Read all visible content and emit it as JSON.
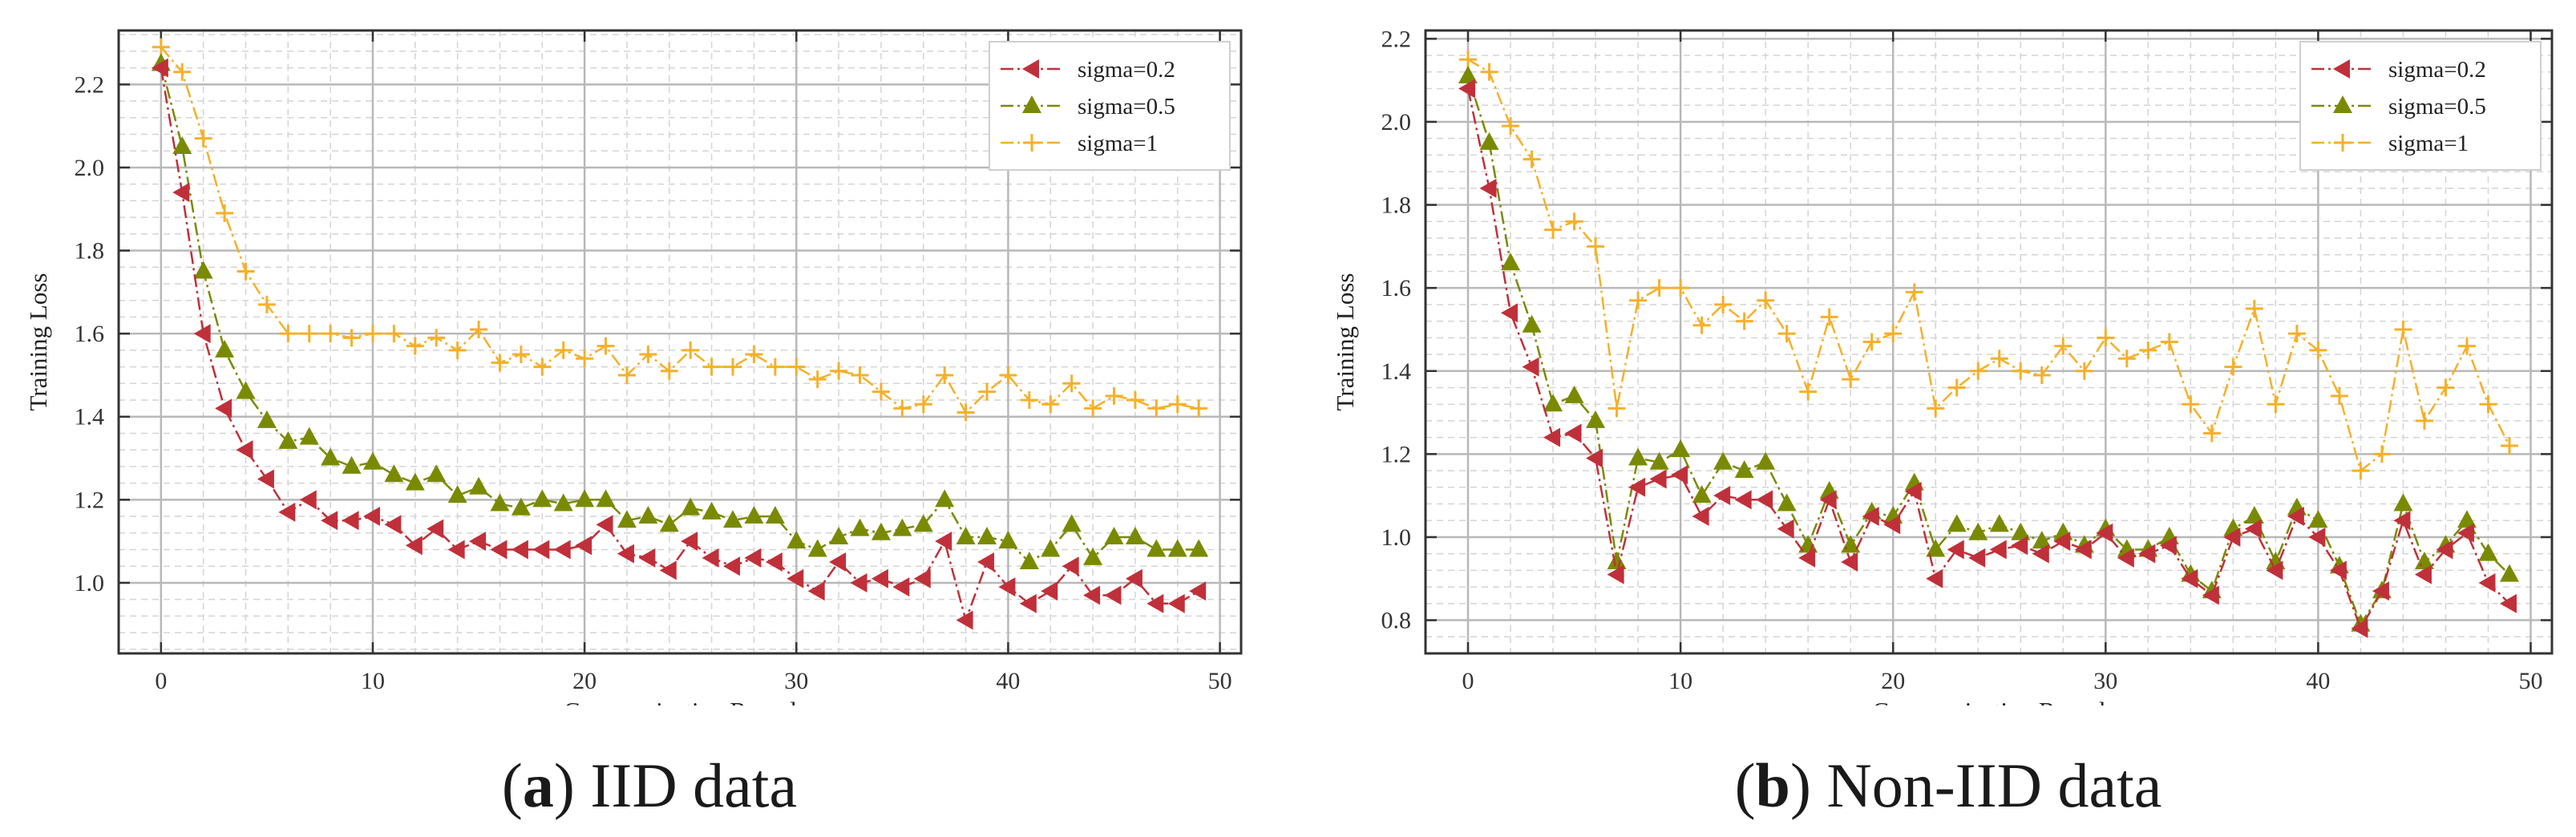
{
  "figure": {
    "panels": [
      {
        "caption_letter": "a",
        "caption_text": " IID data",
        "chart_data": {
          "type": "line",
          "title": "",
          "xlabel": "Communication Round",
          "ylabel": "Training Loss",
          "xlim": [
            -2,
            51
          ],
          "ylim": [
            0.83,
            2.33
          ],
          "xticks": [
            0,
            10,
            20,
            30,
            40,
            50
          ],
          "yticks": [
            1.0,
            1.2,
            1.4,
            1.6,
            1.8,
            2.0,
            2.2
          ],
          "ytick_labels": [
            "1.0",
            "1.2",
            "1.4",
            "1.6",
            "1.8",
            "2.0",
            "2.2"
          ],
          "grid": true,
          "legend_position": "top-right",
          "x": [
            0,
            1,
            2,
            3,
            4,
            5,
            6,
            7,
            8,
            9,
            10,
            11,
            12,
            13,
            14,
            15,
            16,
            17,
            18,
            19,
            20,
            21,
            22,
            23,
            24,
            25,
            26,
            27,
            28,
            29,
            30,
            31,
            32,
            33,
            34,
            35,
            36,
            37,
            38,
            39,
            40,
            41,
            42,
            43,
            44,
            45,
            46,
            47,
            48,
            49
          ],
          "series": [
            {
              "name": "sigma=0.2",
              "color": "#c0303a",
              "marker": "triangle-left",
              "values": [
                2.24,
                1.94,
                1.6,
                1.42,
                1.32,
                1.25,
                1.17,
                1.2,
                1.15,
                1.15,
                1.16,
                1.14,
                1.09,
                1.13,
                1.08,
                1.1,
                1.08,
                1.08,
                1.08,
                1.08,
                1.09,
                1.14,
                1.07,
                1.06,
                1.03,
                1.1,
                1.06,
                1.04,
                1.06,
                1.05,
                1.01,
                0.98,
                1.05,
                1.0,
                1.01,
                0.99,
                1.01,
                1.1,
                0.91,
                1.05,
                0.99,
                0.95,
                0.98,
                1.04,
                0.97,
                0.97,
                1.01,
                0.95,
                0.95,
                0.98
              ]
            },
            {
              "name": "sigma=0.5",
              "color": "#7a8a00",
              "marker": "triangle-up",
              "values": [
                2.25,
                2.05,
                1.75,
                1.56,
                1.46,
                1.39,
                1.34,
                1.35,
                1.3,
                1.28,
                1.29,
                1.26,
                1.24,
                1.26,
                1.21,
                1.23,
                1.19,
                1.18,
                1.2,
                1.19,
                1.2,
                1.2,
                1.15,
                1.16,
                1.14,
                1.18,
                1.17,
                1.15,
                1.16,
                1.16,
                1.1,
                1.08,
                1.11,
                1.13,
                1.12,
                1.13,
                1.14,
                1.2,
                1.11,
                1.11,
                1.1,
                1.05,
                1.08,
                1.14,
                1.06,
                1.11,
                1.11,
                1.08,
                1.08,
                1.08
              ]
            },
            {
              "name": "sigma=1",
              "color": "#f5b02a",
              "marker": "plus",
              "values": [
                2.29,
                2.23,
                2.07,
                1.89,
                1.75,
                1.67,
                1.6,
                1.6,
                1.6,
                1.59,
                1.6,
                1.6,
                1.57,
                1.59,
                1.56,
                1.61,
                1.53,
                1.55,
                1.52,
                1.56,
                1.54,
                1.57,
                1.5,
                1.55,
                1.51,
                1.56,
                1.52,
                1.52,
                1.55,
                1.52,
                1.52,
                1.49,
                1.51,
                1.5,
                1.46,
                1.42,
                1.43,
                1.5,
                1.41,
                1.46,
                1.5,
                1.44,
                1.43,
                1.48,
                1.42,
                1.45,
                1.44,
                1.42,
                1.43,
                1.42
              ]
            }
          ]
        }
      },
      {
        "caption_letter": "b",
        "caption_text": " Non-IID data",
        "chart_data": {
          "type": "line",
          "title": "",
          "xlabel": "Communication Round",
          "ylabel": "Training Loss",
          "xlim": [
            -2,
            51
          ],
          "ylim": [
            0.72,
            2.22
          ],
          "xticks": [
            0,
            10,
            20,
            30,
            40,
            50
          ],
          "yticks": [
            0.8,
            1.0,
            1.2,
            1.4,
            1.6,
            1.8,
            2.0,
            2.2
          ],
          "ytick_labels": [
            "0.8",
            "1.0",
            "1.2",
            "1.4",
            "1.6",
            "1.8",
            "2.0",
            "2.2"
          ],
          "grid": true,
          "legend_position": "top-right",
          "x": [
            0,
            1,
            2,
            3,
            4,
            5,
            6,
            7,
            8,
            9,
            10,
            11,
            12,
            13,
            14,
            15,
            16,
            17,
            18,
            19,
            20,
            21,
            22,
            23,
            24,
            25,
            26,
            27,
            28,
            29,
            30,
            31,
            32,
            33,
            34,
            35,
            36,
            37,
            38,
            39,
            40,
            41,
            42,
            43,
            44,
            45,
            46,
            47,
            48,
            49
          ],
          "series": [
            {
              "name": "sigma=0.2",
              "color": "#c0303a",
              "marker": "triangle-left",
              "values": [
                2.08,
                1.84,
                1.54,
                1.41,
                1.24,
                1.25,
                1.19,
                0.91,
                1.12,
                1.14,
                1.15,
                1.05,
                1.1,
                1.09,
                1.09,
                1.02,
                0.95,
                1.09,
                0.94,
                1.05,
                1.03,
                1.11,
                0.9,
                0.97,
                0.95,
                0.97,
                0.98,
                0.96,
                0.99,
                0.97,
                1.01,
                0.95,
                0.96,
                0.98,
                0.9,
                0.86,
                1.0,
                1.02,
                0.92,
                1.05,
                1.0,
                0.92,
                0.78,
                0.87,
                1.04,
                0.91,
                0.97,
                1.01,
                0.89,
                0.84
              ]
            },
            {
              "name": "sigma=0.5",
              "color": "#7a8a00",
              "marker": "triangle-up",
              "values": [
                2.11,
                1.95,
                1.66,
                1.51,
                1.32,
                1.34,
                1.28,
                0.94,
                1.19,
                1.18,
                1.21,
                1.1,
                1.18,
                1.16,
                1.18,
                1.08,
                0.98,
                1.11,
                0.98,
                1.06,
                1.05,
                1.13,
                0.97,
                1.03,
                1.01,
                1.03,
                1.01,
                0.99,
                1.01,
                0.98,
                1.02,
                0.97,
                0.97,
                1.0,
                0.91,
                0.87,
                1.02,
                1.05,
                0.94,
                1.07,
                1.04,
                0.93,
                0.79,
                0.87,
                1.08,
                0.94,
                0.98,
                1.04,
                0.96,
                0.91
              ]
            },
            {
              "name": "sigma=1",
              "color": "#f5b02a",
              "marker": "plus",
              "values": [
                2.15,
                2.12,
                1.99,
                1.91,
                1.74,
                1.76,
                1.7,
                1.31,
                1.57,
                1.6,
                1.6,
                1.51,
                1.56,
                1.52,
                1.57,
                1.49,
                1.35,
                1.53,
                1.38,
                1.47,
                1.49,
                1.59,
                1.31,
                1.36,
                1.4,
                1.43,
                1.4,
                1.39,
                1.46,
                1.4,
                1.48,
                1.43,
                1.45,
                1.47,
                1.32,
                1.25,
                1.41,
                1.55,
                1.32,
                1.49,
                1.45,
                1.34,
                1.16,
                1.2,
                1.5,
                1.28,
                1.36,
                1.46,
                1.32,
                1.22
              ]
            }
          ]
        }
      }
    ]
  }
}
